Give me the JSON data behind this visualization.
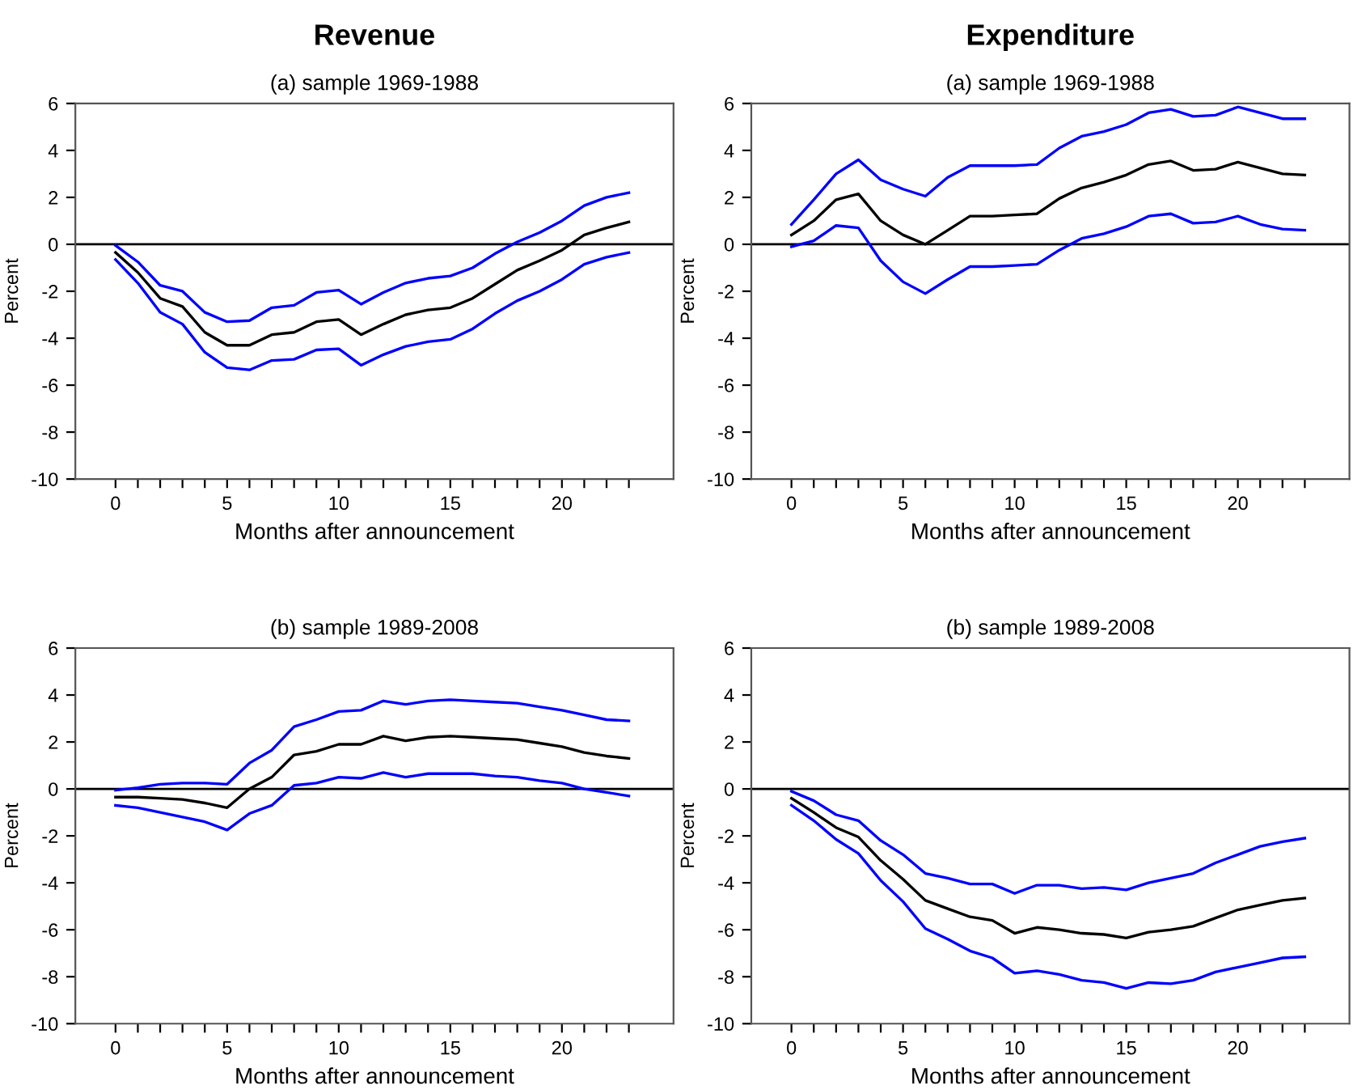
{
  "chart_data": [
    {
      "type": "line",
      "title": "Revenue",
      "subtitle": "(a) sample 1969-1988",
      "xlabel": "Months after announcement",
      "ylabel": "Percent",
      "x": [
        0,
        1,
        2,
        3,
        4,
        5,
        6,
        7,
        8,
        9,
        10,
        11,
        12,
        13,
        14,
        15,
        16,
        17,
        18,
        19,
        20,
        21,
        22,
        23
      ],
      "series": [
        {
          "color": "#0000ff",
          "values": [
            -0.05,
            -0.75,
            -1.75,
            -2.0,
            -2.9,
            -3.3,
            -3.25,
            -2.7,
            -2.6,
            -2.05,
            -1.95,
            -2.55,
            -2.05,
            -1.65,
            -1.45,
            -1.35,
            -1.0,
            -0.4,
            0.1,
            0.5,
            1.0,
            1.65,
            2.0,
            2.2
          ]
        },
        {
          "color": "#000000",
          "values": [
            -0.35,
            -1.2,
            -2.3,
            -2.65,
            -3.75,
            -4.3,
            -4.3,
            -3.85,
            -3.75,
            -3.3,
            -3.2,
            -3.85,
            -3.4,
            -3.0,
            -2.8,
            -2.7,
            -2.3,
            -1.7,
            -1.1,
            -0.7,
            -0.25,
            0.4,
            0.7,
            0.95
          ]
        },
        {
          "color": "#0000ff",
          "values": [
            -0.65,
            -1.65,
            -2.9,
            -3.4,
            -4.6,
            -5.25,
            -5.35,
            -4.95,
            -4.9,
            -4.5,
            -4.45,
            -5.15,
            -4.7,
            -4.35,
            -4.15,
            -4.05,
            -3.6,
            -2.95,
            -2.4,
            -2.0,
            -1.5,
            -0.85,
            -0.55,
            -0.35
          ]
        }
      ],
      "xlim": [
        -1.8,
        25
      ],
      "ylim": [
        -10,
        6
      ],
      "xticks": [
        0,
        {
          "value": 1,
          "label": null
        },
        {
          "value": 2,
          "label": null
        },
        {
          "value": 3,
          "label": null
        },
        {
          "value": 4,
          "label": null
        },
        5,
        {
          "value": 6,
          "label": null
        },
        {
          "value": 7,
          "label": null
        },
        {
          "value": 8,
          "label": null
        },
        {
          "value": 9,
          "label": null
        },
        10,
        {
          "value": 11,
          "label": null
        },
        {
          "value": 12,
          "label": null
        },
        {
          "value": 13,
          "label": null
        },
        {
          "value": 14,
          "label": null
        },
        15,
        {
          "value": 16,
          "label": null
        },
        {
          "value": 17,
          "label": null
        },
        {
          "value": 18,
          "label": null
        },
        {
          "value": 19,
          "label": null
        },
        20,
        {
          "value": 21,
          "label": null
        },
        {
          "value": 22,
          "label": null
        },
        {
          "value": 23,
          "label": null
        }
      ],
      "yticks": [
        -10,
        -8,
        -6,
        -4,
        -2,
        0,
        2,
        4,
        6
      ],
      "ref_lines": [
        {
          "axis": "y",
          "value": 0,
          "color": "#000000"
        }
      ]
    },
    {
      "type": "line",
      "title": "Expenditure",
      "subtitle": "(a) sample 1969-1988",
      "xlabel": "Months after announcement",
      "ylabel": "Percent",
      "x": [
        0,
        1,
        2,
        3,
        4,
        5,
        6,
        7,
        8,
        9,
        10,
        11,
        12,
        13,
        14,
        15,
        16,
        17,
        18,
        19,
        20,
        21,
        22,
        23
      ],
      "series": [
        {
          "color": "#0000ff",
          "values": [
            0.85,
            1.9,
            3.0,
            3.6,
            2.75,
            2.35,
            2.05,
            2.85,
            3.35,
            3.35,
            3.35,
            3.4,
            4.1,
            4.6,
            4.8,
            5.1,
            5.6,
            5.75,
            5.45,
            5.5,
            5.85,
            5.6,
            5.35,
            5.35
          ]
        },
        {
          "color": "#000000",
          "values": [
            0.4,
            1.0,
            1.9,
            2.15,
            1.0,
            0.4,
            0.0,
            0.6,
            1.2,
            1.2,
            1.25,
            1.3,
            1.95,
            2.4,
            2.65,
            2.95,
            3.4,
            3.55,
            3.15,
            3.2,
            3.5,
            3.25,
            3.0,
            2.95
          ]
        },
        {
          "color": "#0000ff",
          "values": [
            -0.1,
            0.15,
            0.8,
            0.7,
            -0.7,
            -1.6,
            -2.1,
            -1.5,
            -0.95,
            -0.95,
            -0.9,
            -0.85,
            -0.25,
            0.25,
            0.45,
            0.75,
            1.2,
            1.3,
            0.9,
            0.95,
            1.2,
            0.85,
            0.65,
            0.6
          ]
        }
      ],
      "xlim": [
        -1.8,
        25
      ],
      "ylim": [
        -10,
        6
      ],
      "xticks": [
        0,
        {
          "value": 1,
          "label": null
        },
        {
          "value": 2,
          "label": null
        },
        {
          "value": 3,
          "label": null
        },
        {
          "value": 4,
          "label": null
        },
        5,
        {
          "value": 6,
          "label": null
        },
        {
          "value": 7,
          "label": null
        },
        {
          "value": 8,
          "label": null
        },
        {
          "value": 9,
          "label": null
        },
        10,
        {
          "value": 11,
          "label": null
        },
        {
          "value": 12,
          "label": null
        },
        {
          "value": 13,
          "label": null
        },
        {
          "value": 14,
          "label": null
        },
        15,
        {
          "value": 16,
          "label": null
        },
        {
          "value": 17,
          "label": null
        },
        {
          "value": 18,
          "label": null
        },
        {
          "value": 19,
          "label": null
        },
        20,
        {
          "value": 21,
          "label": null
        },
        {
          "value": 22,
          "label": null
        },
        {
          "value": 23,
          "label": null
        }
      ],
      "yticks": [
        -10,
        -8,
        -6,
        -4,
        -2,
        0,
        2,
        4,
        6
      ],
      "ref_lines": [
        {
          "axis": "y",
          "value": 0,
          "color": "#000000"
        }
      ]
    },
    {
      "type": "line",
      "title": "(b) sample 1989-2008",
      "xlabel": "Months after announcement",
      "ylabel": "Percent",
      "x": [
        0,
        1,
        2,
        3,
        4,
        5,
        6,
        7,
        8,
        9,
        10,
        11,
        12,
        13,
        14,
        15,
        16,
        17,
        18,
        19,
        20,
        21,
        22,
        23
      ],
      "series": [
        {
          "color": "#0000ff",
          "values": [
            -0.05,
            0.05,
            0.2,
            0.25,
            0.25,
            0.2,
            1.1,
            1.65,
            2.65,
            2.95,
            3.3,
            3.35,
            3.75,
            3.6,
            3.75,
            3.8,
            3.75,
            3.7,
            3.65,
            3.5,
            3.35,
            3.15,
            2.95,
            2.9
          ]
        },
        {
          "color": "#000000",
          "values": [
            -0.35,
            -0.35,
            -0.4,
            -0.45,
            -0.6,
            -0.8,
            0.0,
            0.5,
            1.45,
            1.6,
            1.9,
            1.9,
            2.25,
            2.05,
            2.2,
            2.25,
            2.2,
            2.15,
            2.1,
            1.95,
            1.8,
            1.55,
            1.4,
            1.3
          ]
        },
        {
          "color": "#0000ff",
          "values": [
            -0.7,
            -0.8,
            -1.0,
            -1.2,
            -1.4,
            -1.75,
            -1.05,
            -0.7,
            0.15,
            0.25,
            0.5,
            0.45,
            0.7,
            0.5,
            0.65,
            0.65,
            0.65,
            0.55,
            0.5,
            0.35,
            0.25,
            0.0,
            -0.15,
            -0.3
          ]
        }
      ],
      "xlim": [
        -1.8,
        25
      ],
      "ylim": [
        -10,
        6
      ],
      "xticks": [
        0,
        {
          "value": 1,
          "label": null
        },
        {
          "value": 2,
          "label": null
        },
        {
          "value": 3,
          "label": null
        },
        {
          "value": 4,
          "label": null
        },
        5,
        {
          "value": 6,
          "label": null
        },
        {
          "value": 7,
          "label": null
        },
        {
          "value": 8,
          "label": null
        },
        {
          "value": 9,
          "label": null
        },
        10,
        {
          "value": 11,
          "label": null
        },
        {
          "value": 12,
          "label": null
        },
        {
          "value": 13,
          "label": null
        },
        {
          "value": 14,
          "label": null
        },
        15,
        {
          "value": 16,
          "label": null
        },
        {
          "value": 17,
          "label": null
        },
        {
          "value": 18,
          "label": null
        },
        {
          "value": 19,
          "label": null
        },
        20,
        {
          "value": 21,
          "label": null
        },
        {
          "value": 22,
          "label": null
        },
        {
          "value": 23,
          "label": null
        }
      ],
      "yticks": [
        -10,
        -8,
        -6,
        -4,
        -2,
        0,
        2,
        4,
        6
      ],
      "ref_lines": [
        {
          "axis": "y",
          "value": 0,
          "color": "#000000"
        }
      ]
    },
    {
      "type": "line",
      "title": "(b) sample 1989-2008",
      "xlabel": "Months after announcement",
      "ylabel": "Percent",
      "x": [
        0,
        1,
        2,
        3,
        4,
        5,
        6,
        7,
        8,
        9,
        10,
        11,
        12,
        13,
        14,
        15,
        16,
        17,
        18,
        19,
        20,
        21,
        22,
        23
      ],
      "series": [
        {
          "color": "#0000ff",
          "values": [
            -0.1,
            -0.5,
            -1.1,
            -1.35,
            -2.2,
            -2.8,
            -3.6,
            -3.8,
            -4.05,
            -4.05,
            -4.45,
            -4.1,
            -4.1,
            -4.25,
            -4.2,
            -4.3,
            -4.0,
            -3.8,
            -3.6,
            -3.15,
            -2.8,
            -2.45,
            -2.25,
            -2.1
          ]
        },
        {
          "color": "#000000",
          "values": [
            -0.4,
            -1.0,
            -1.65,
            -2.05,
            -3.05,
            -3.85,
            -4.75,
            -5.1,
            -5.45,
            -5.6,
            -6.15,
            -5.9,
            -6.0,
            -6.15,
            -6.2,
            -6.35,
            -6.1,
            -6.0,
            -5.85,
            -5.5,
            -5.15,
            -4.95,
            -4.75,
            -4.65
          ]
        },
        {
          "color": "#0000ff",
          "values": [
            -0.7,
            -1.35,
            -2.15,
            -2.75,
            -3.9,
            -4.8,
            -5.95,
            -6.4,
            -6.9,
            -7.2,
            -7.85,
            -7.75,
            -7.9,
            -8.15,
            -8.25,
            -8.5,
            -8.25,
            -8.3,
            -8.15,
            -7.8,
            -7.6,
            -7.4,
            -7.2,
            -7.15
          ]
        }
      ],
      "xlim": [
        -1.8,
        25
      ],
      "ylim": [
        -10,
        6
      ],
      "xticks": [
        0,
        {
          "value": 1,
          "label": null
        },
        {
          "value": 2,
          "label": null
        },
        {
          "value": 3,
          "label": null
        },
        {
          "value": 4,
          "label": null
        },
        5,
        {
          "value": 6,
          "label": null
        },
        {
          "value": 7,
          "label": null
        },
        {
          "value": 8,
          "label": null
        },
        {
          "value": 9,
          "label": null
        },
        10,
        {
          "value": 11,
          "label": null
        },
        {
          "value": 12,
          "label": null
        },
        {
          "value": 13,
          "label": null
        },
        {
          "value": 14,
          "label": null
        },
        15,
        {
          "value": 16,
          "label": null
        },
        {
          "value": 17,
          "label": null
        },
        {
          "value": 18,
          "label": null
        },
        {
          "value": 19,
          "label": null
        },
        20,
        {
          "value": 21,
          "label": null
        },
        {
          "value": 22,
          "label": null
        },
        {
          "value": 23,
          "label": null
        }
      ],
      "yticks": [
        -10,
        -8,
        -6,
        -4,
        -2,
        0,
        2,
        4,
        6
      ],
      "ref_lines": [
        {
          "axis": "y",
          "value": 0,
          "color": "#000000"
        }
      ]
    }
  ]
}
